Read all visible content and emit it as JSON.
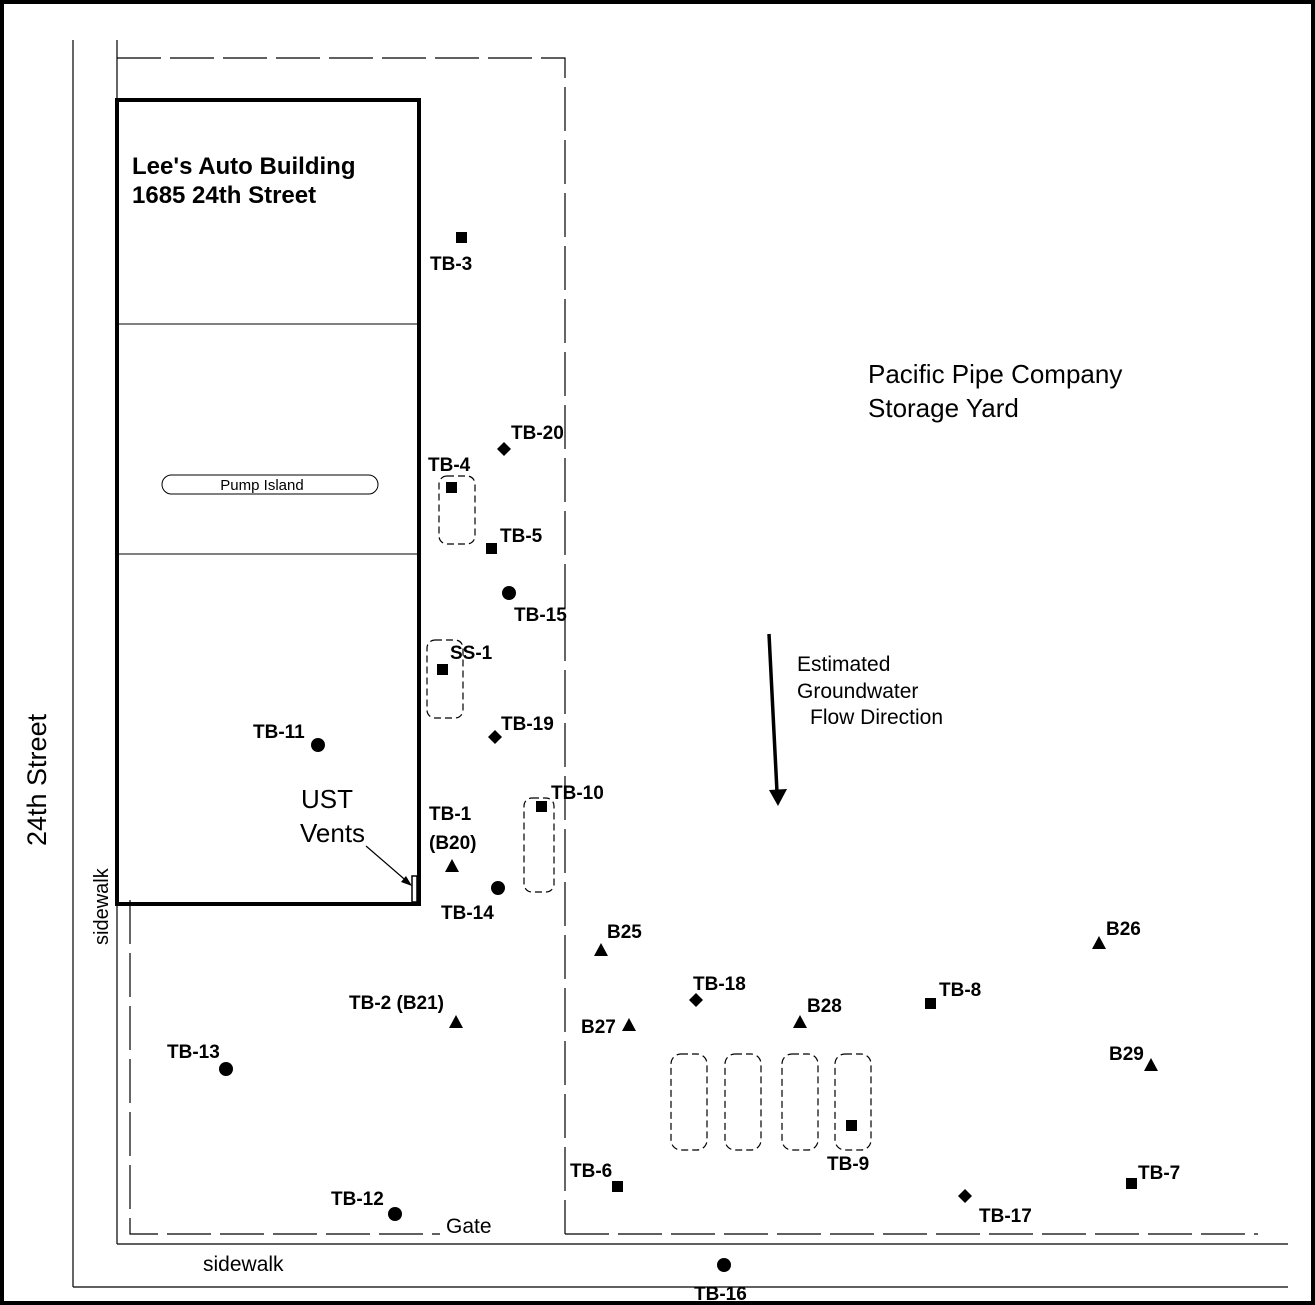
{
  "building": {
    "name": "Lee's Auto Building",
    "address": "1685 24th Street",
    "pump_island": "Pump Island",
    "ust_vents_1": "UST",
    "ust_vents_2": "Vents"
  },
  "streets": {
    "street_name": "24th Street",
    "sidewalk_west": "sidewalk",
    "sidewalk_south": "sidewalk",
    "gate": "Gate"
  },
  "yard": {
    "line1": "Pacific Pipe Company",
    "line2": "Storage Yard"
  },
  "groundwater": {
    "line1": "Estimated",
    "line2": "Groundwater",
    "line3": "Flow Direction"
  },
  "borings": [
    {
      "id": "TB-3",
      "label": "TB-3",
      "marker": "square"
    },
    {
      "id": "TB-20",
      "label": "TB-20",
      "marker": "diamond"
    },
    {
      "id": "TB-4",
      "label": "TB-4",
      "marker": "square"
    },
    {
      "id": "TB-5",
      "label": "TB-5",
      "marker": "square"
    },
    {
      "id": "TB-15",
      "label": "TB-15",
      "marker": "circle"
    },
    {
      "id": "SS-1",
      "label": "SS-1",
      "marker": "square"
    },
    {
      "id": "TB-19",
      "label": "TB-19",
      "marker": "diamond"
    },
    {
      "id": "TB-11",
      "label": "TB-11",
      "marker": "circle"
    },
    {
      "id": "TB-10",
      "label": "TB-10",
      "marker": "square"
    },
    {
      "id": "TB-1",
      "label": "TB-1",
      "label2": "(B20)",
      "marker": "triangle"
    },
    {
      "id": "TB-14",
      "label": "TB-14",
      "marker": "circle"
    },
    {
      "id": "B25",
      "label": "B25",
      "marker": "triangle"
    },
    {
      "id": "B26",
      "label": "B26",
      "marker": "triangle"
    },
    {
      "id": "TB-18",
      "label": "TB-18",
      "marker": "diamond"
    },
    {
      "id": "TB-8",
      "label": "TB-8",
      "marker": "square"
    },
    {
      "id": "TB-2",
      "label": "TB-2 (B21)",
      "marker": "triangle"
    },
    {
      "id": "B27",
      "label": "B27",
      "marker": "triangle"
    },
    {
      "id": "B28",
      "label": "B28",
      "marker": "triangle"
    },
    {
      "id": "TB-13",
      "label": "TB-13",
      "marker": "circle"
    },
    {
      "id": "B29",
      "label": "B29",
      "marker": "triangle"
    },
    {
      "id": "TB-9",
      "label": "TB-9",
      "marker": "square"
    },
    {
      "id": "TB-6",
      "label": "TB-6",
      "marker": "square"
    },
    {
      "id": "TB-7",
      "label": "TB-7",
      "marker": "square"
    },
    {
      "id": "TB-12",
      "label": "TB-12",
      "marker": "circle"
    },
    {
      "id": "TB-17",
      "label": "TB-17",
      "marker": "diamond"
    },
    {
      "id": "TB-16",
      "label": "TB-16",
      "marker": "circle"
    }
  ]
}
